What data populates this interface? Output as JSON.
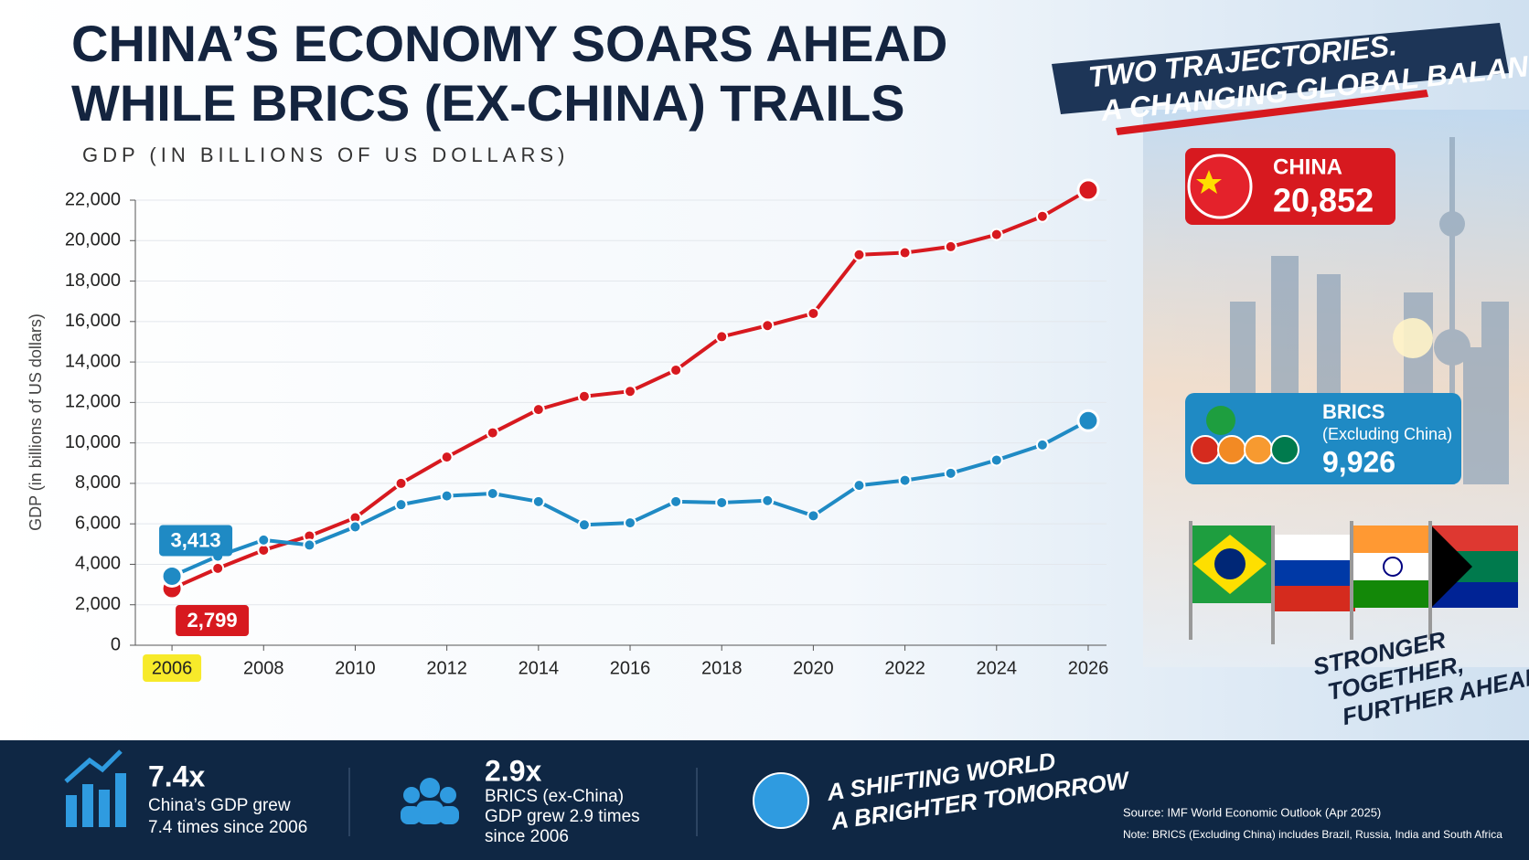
{
  "chart_data": {
    "type": "line",
    "title": [
      "CHINA’S ECONOMY SOARS AHEAD",
      "WHILE BRICS (EX-CHINA) TRAILS"
    ],
    "subtitle": "GDP (IN BILLIONS OF US DOLLARS)",
    "y_label": "GDP (in billions of US dollars)",
    "x": [
      2006,
      2007,
      2008,
      2009,
      2010,
      2011,
      2012,
      2013,
      2014,
      2015,
      2016,
      2017,
      2018,
      2019,
      2020,
      2021,
      2022,
      2023,
      2024,
      2025,
      2026
    ],
    "series": [
      {
        "name": "CHINA",
        "color": "#d7191f",
        "values": [
          2799,
          3800,
          4700,
          5400,
          6300,
          8000,
          9300,
          10500,
          11650,
          12300,
          12550,
          13600,
          15250,
          15800,
          16400,
          19300,
          19400,
          19700,
          20300,
          21200,
          22500
        ]
      },
      {
        "name": "BRICS",
        "color": "#1f8ac4",
        "values": [
          3413,
          4400,
          5200,
          4950,
          5850,
          6950,
          7380,
          7500,
          7100,
          5950,
          6050,
          7100,
          7050,
          7150,
          6400,
          7900,
          8150,
          8500,
          9150,
          9900,
          11100
        ]
      }
    ],
    "xlim": [
      2005.2,
      2026.4
    ],
    "xticks": [
      2006,
      2008,
      2010,
      2012,
      2014,
      2016,
      2018,
      2020,
      2022,
      2024,
      2026
    ],
    "ylim": [
      0,
      22000
    ],
    "yticks": [
      0,
      {
        "value": 2000,
        "label": "2,000"
      },
      {
        "value": 4000,
        "label": "4,000"
      },
      {
        "value": 6000,
        "label": "6,000"
      },
      {
        "value": 8000,
        "label": "8,000"
      },
      {
        "value": 10000,
        "label": "10,000"
      },
      {
        "value": 12000,
        "label": "12,000"
      },
      {
        "value": 14000,
        "label": "14,000"
      },
      {
        "value": 16000,
        "label": "16,000"
      },
      {
        "value": 18000,
        "label": "18,000"
      },
      {
        "value": 20000,
        "label": "20,000"
      },
      {
        "value": 22000,
        "label": "22,000"
      }
    ],
    "grid": true,
    "start_labels": [
      "2,799",
      "3,413"
    ],
    "callouts": [
      {
        "name": "CHINA",
        "value": "20,852"
      },
      {
        "name": "BRICS",
        "detail": "(Excluding China)",
        "value": "9,926"
      }
    ]
  },
  "banner": [
    "TWO TRAJECTORIES.",
    "A CHANGING GLOBAL BALANCE."
  ],
  "slogan": [
    "STRONGER",
    "TOGETHER,",
    "FURTHER AHEAD"
  ],
  "footer": {
    "stats": [
      {
        "value": "7.4x",
        "text": [
          "China’s GDP grew",
          "7.4 times since 2006"
        ]
      },
      {
        "value": "2.9x",
        "text": [
          "BRICS (ex-China)",
          "GDP grew 2.9 times",
          "since 2006"
        ]
      }
    ],
    "tagline": [
      "A SHIFTING WORLD",
      "A BRIGHTER TOMORROW"
    ],
    "source": "Source: IMF World Economic Outlook (Apr 2025)",
    "note": "Note: BRICS (Excluding China) includes Brazil, Russia, India and South Africa"
  }
}
